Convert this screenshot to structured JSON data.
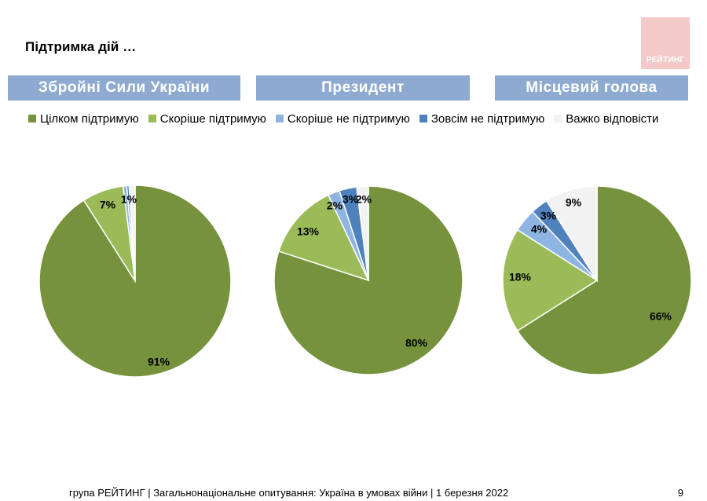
{
  "title": "Підтримка дій …",
  "logo_text": "РЕЙТИНГ",
  "footer": "група РЕЙТИНГ | Загальнонаціональне опитування: Україна в умовах війни | 1 березня 2022",
  "page_number": "9",
  "chart_data": {
    "type": "pie",
    "legend_placement": "top",
    "legend": [
      {
        "label": "Цілком підтримую",
        "color": "#76923c"
      },
      {
        "label": "Скоріше підтримую",
        "color": "#9bbb59"
      },
      {
        "label": "Скоріше не підтримую",
        "color": "#8eb4e3"
      },
      {
        "label": "Зовсім не підтримую",
        "color": "#4f81bd"
      },
      {
        "label": "Важко відповісти",
        "color": "#f2f2f2"
      }
    ],
    "charts": [
      {
        "title": "Збройні Сили України",
        "slices": [
          {
            "category": "Цілком підтримую",
            "value": 91,
            "label": "91%"
          },
          {
            "category": "Скоріше підтримую",
            "value": 7,
            "label": "7%"
          },
          {
            "category": "Скоріше не підтримую",
            "value": 0.6,
            "label": ""
          },
          {
            "category": "Зовсім не підтримую",
            "value": 0.4,
            "label": ""
          },
          {
            "category": "Важко відповісти",
            "value": 1,
            "label": "1%"
          }
        ]
      },
      {
        "title": "Президент",
        "slices": [
          {
            "category": "Цілком підтримую",
            "value": 80,
            "label": "80%"
          },
          {
            "category": "Скоріше підтримую",
            "value": 13,
            "label": "13%"
          },
          {
            "category": "Скоріше не підтримую",
            "value": 2,
            "label": "2%"
          },
          {
            "category": "Зовсім не підтримую",
            "value": 3,
            "label": "3%"
          },
          {
            "category": "Важко відповісти",
            "value": 2,
            "label": "2%"
          }
        ]
      },
      {
        "title": "Місцевий голова",
        "slices": [
          {
            "category": "Цілком підтримую",
            "value": 66,
            "label": "66%"
          },
          {
            "category": "Скоріше підтримую",
            "value": 18,
            "label": "18%"
          },
          {
            "category": "Скоріше не підтримую",
            "value": 4,
            "label": "4%"
          },
          {
            "category": "Зовсім не підтримую",
            "value": 3,
            "label": "3%"
          },
          {
            "category": "Важко відповісти",
            "value": 9,
            "label": "9%"
          }
        ]
      }
    ]
  }
}
